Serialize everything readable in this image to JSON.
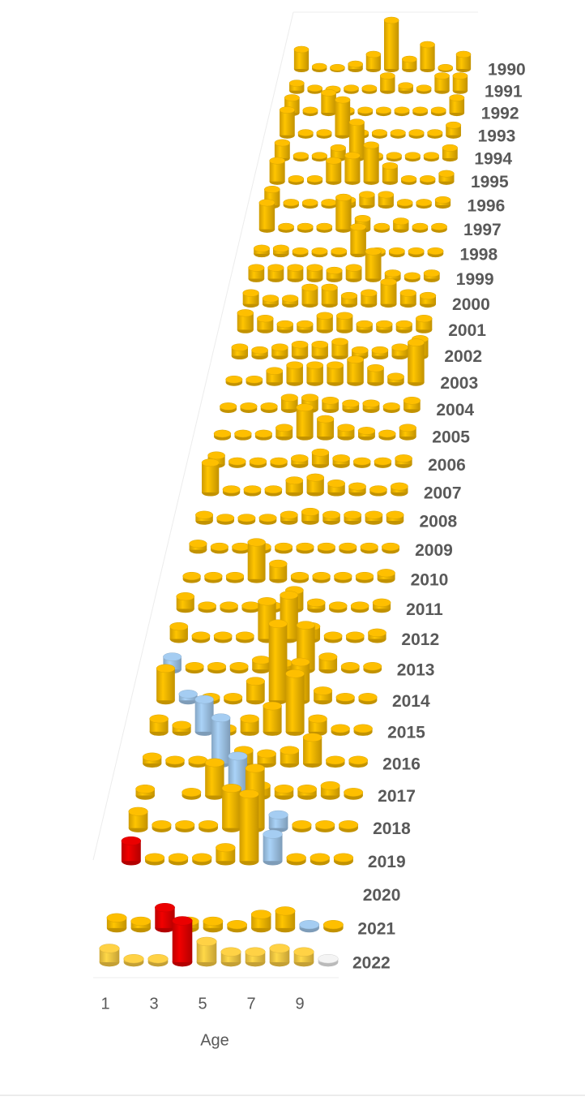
{
  "chart_data": {
    "type": "cylinder3d",
    "x_label": "Age",
    "categories": [
      1,
      null,
      3,
      null,
      5,
      null,
      7,
      null,
      9,
      null
    ],
    "series": [
      {
        "name": "1990",
        "color": "#f2b600",
        "values": [
          4,
          0.5,
          0.3,
          1,
          3,
          10,
          2,
          5,
          0.3,
          3
        ]
      },
      {
        "name": "1991",
        "color": "#f2b600",
        "values": [
          1.5,
          0.5,
          0.3,
          0.5,
          0.5,
          3,
          1,
          0.5,
          3,
          3
        ]
      },
      {
        "name": "1992",
        "color": "#f2b600",
        "values": [
          3,
          0.5,
          4,
          0.5,
          0.5,
          0.5,
          0.5,
          0.5,
          0.5,
          3
        ]
      },
      {
        "name": "1993",
        "color": "#f2b600",
        "values": [
          5,
          0.5,
          0.5,
          7,
          0.5,
          0.5,
          0.5,
          0.5,
          0.5,
          2
        ]
      },
      {
        "name": "1994",
        "color": "#f2b600",
        "values": [
          3,
          0.5,
          0.5,
          2,
          7,
          0.5,
          0.5,
          0.5,
          0.5,
          2
        ]
      },
      {
        "name": "1995",
        "color": "#f2b600",
        "values": [
          4,
          0.5,
          0.5,
          4,
          5,
          7,
          3,
          0.5,
          0.5,
          1.5
        ]
      },
      {
        "name": "1996",
        "color": "#f2b600",
        "values": [
          3,
          0.5,
          0.5,
          0.5,
          1,
          2,
          2,
          0.5,
          0.5,
          1
        ]
      },
      {
        "name": "1997",
        "color": "#f2b600",
        "values": [
          5,
          0.5,
          0.5,
          0.5,
          6,
          2,
          0.5,
          1.5,
          0.5,
          0.5
        ]
      },
      {
        "name": "1998",
        "color": "#f2b600",
        "values": [
          1,
          1,
          0.5,
          0.5,
          0.5,
          5,
          0.5,
          0.5,
          0.5,
          0.5
        ]
      },
      {
        "name": "1999",
        "color": "#f2b600",
        "values": [
          2,
          2,
          2,
          2,
          1.5,
          2,
          5,
          1,
          0.5,
          1
        ]
      },
      {
        "name": "2000",
        "color": "#f2b600",
        "values": [
          2,
          1,
          1,
          3,
          3,
          1.5,
          2,
          4,
          2,
          1.5
        ]
      },
      {
        "name": "2001",
        "color": "#f2b600",
        "values": [
          3,
          2,
          1,
          1,
          2.5,
          2.5,
          1,
          1,
          1,
          2
        ]
      },
      {
        "name": "2002",
        "color": "#f2b600",
        "values": [
          1.5,
          1,
          1.5,
          2,
          2,
          2.5,
          1,
          1,
          1.5,
          3
        ]
      },
      {
        "name": "2003",
        "color": "#f2b600",
        "values": [
          0.5,
          0.5,
          2,
          3,
          3,
          3,
          4,
          2.5,
          1,
          7
        ]
      },
      {
        "name": "2004",
        "color": "#f2b600",
        "values": [
          0.5,
          0.5,
          0.5,
          2,
          2,
          1.5,
          1,
          1,
          0.5,
          1.5
        ]
      },
      {
        "name": "2005",
        "color": "#f2b600",
        "values": [
          0.5,
          0.5,
          0.5,
          1.5,
          5,
          3,
          1.5,
          1,
          0.5,
          1.5
        ]
      },
      {
        "name": "2006",
        "color": "#f2b600",
        "values": [
          1.5,
          0.5,
          0.5,
          0.5,
          1,
          2,
          1,
          0.5,
          0.5,
          1
        ]
      },
      {
        "name": "2007",
        "color": "#f2b600",
        "values": [
          5,
          0.5,
          0.5,
          0.5,
          2,
          2.5,
          1.5,
          1,
          0.5,
          1
        ]
      },
      {
        "name": "2008",
        "color": "#f2b600",
        "values": [
          1,
          0.5,
          0.5,
          0.5,
          1,
          1.5,
          1,
          1,
          1,
          1
        ]
      },
      {
        "name": "2009",
        "color": "#f2b600",
        "values": [
          1,
          0.5,
          0.5,
          0.5,
          0.5,
          0.5,
          0.5,
          0.5,
          0.5,
          0.5
        ]
      },
      {
        "name": "2010",
        "color": "#f2b600",
        "values": [
          0.5,
          0.5,
          0.5,
          6,
          2.5,
          0.5,
          0.5,
          0.5,
          0.5,
          1
        ]
      },
      {
        "name": "2011",
        "color": "#f2b600",
        "values": [
          2,
          0.5,
          0.5,
          0.5,
          0.5,
          3,
          1,
          0.5,
          0.5,
          1
        ]
      },
      {
        "name": "2012",
        "color": "#f2b600",
        "values": [
          2,
          0.5,
          0.5,
          0.5,
          6,
          7,
          2,
          0.5,
          0.5,
          1
        ]
      },
      {
        "name": "2013",
        "color": "#f2b600",
        "values": [
          2,
          0.5,
          0.5,
          0.5,
          1.5,
          1,
          7,
          2,
          0.5,
          0.5
        ],
        "point_colors": [
          "#9dc3e6",
          "#f2b600",
          "#f2b600",
          "#f2b600",
          "#f2b600",
          "#f2b600",
          "#f2b600",
          "#f2b600",
          "#f2b600",
          "#f2b600"
        ]
      },
      {
        "name": "2014",
        "color": "#f2b600",
        "values": [
          5,
          1,
          0.5,
          0.5,
          3,
          12,
          6,
          1.5,
          0.5,
          0.5
        ],
        "point_colors": [
          "#f2b600",
          "#9dc3e6",
          "#f2b600",
          "#f2b600",
          "#f2b600",
          "#f2b600",
          "#f2b600",
          "#f2b600",
          "#f2b600",
          "#f2b600"
        ]
      },
      {
        "name": "2015",
        "color": "#f2b600",
        "values": [
          2,
          1,
          5,
          0.5,
          2,
          4,
          9,
          2,
          0.5,
          0.5
        ],
        "point_colors": [
          "#f2b600",
          "#f2b600",
          "#9dc3e6",
          "#f2b600",
          "#f2b600",
          "#f2b600",
          "#f2b600",
          "#f2b600",
          "#f2b600",
          "#f2b600"
        ]
      },
      {
        "name": "2016",
        "color": "#f2b600",
        "values": [
          1,
          0.5,
          0.5,
          7,
          2,
          1.5,
          2,
          4,
          0.5,
          0.5
        ],
        "point_colors": [
          "#f2b600",
          "#f2b600",
          "#f2b600",
          "#9dc3e6",
          "#f2b600",
          "#f2b600",
          "#f2b600",
          "#f2b600",
          "#f2b600",
          "#f2b600"
        ]
      },
      {
        "name": "2017",
        "color": "#f2b600",
        "values": [
          1,
          null,
          0.5,
          5,
          6,
          1.5,
          1,
          1,
          1.5,
          0.5
        ],
        "point_colors": [
          "#f2b600",
          "#f2b600",
          "#f2b600",
          "#f2b600",
          "#9dc3e6",
          "#f2b600",
          "#f2b600",
          "#f2b600",
          "#f2b600",
          "#f2b600"
        ]
      },
      {
        "name": "2018",
        "color": "#f2b600",
        "values": [
          2.5,
          0.5,
          0.5,
          0.5,
          6,
          9,
          2,
          0.5,
          0.5,
          0.5
        ],
        "point_colors": [
          "#f2b600",
          "#f2b600",
          "#f2b600",
          "#f2b600",
          "#f2b600",
          "#f2b600",
          "#9dc3e6",
          "#f2b600",
          "#f2b600",
          "#f2b600"
        ]
      },
      {
        "name": "2019",
        "color": "#f2b600",
        "values": [
          3,
          0.5,
          0.5,
          0.5,
          2,
          10,
          4,
          0.5,
          0.5,
          0.5
        ],
        "point_colors": [
          "#e00000",
          "#f2b600",
          "#f2b600",
          "#f2b600",
          "#f2b600",
          "#f2b600",
          "#9dc3e6",
          "#f2b600",
          "#f2b600",
          "#f2b600"
        ]
      },
      {
        "name": "2020",
        "color": "#f2b600",
        "values": [
          null,
          null,
          null,
          null,
          null,
          null,
          null,
          null,
          null,
          null
        ]
      },
      {
        "name": "2021",
        "color": "#f2b600",
        "values": [
          1.5,
          1,
          3,
          1,
          1,
          0.5,
          2,
          2.5,
          0.5,
          0.5
        ],
        "point_colors": [
          "#f2b600",
          "#f2b600",
          "#e00000",
          "#f2b600",
          "#f2b600",
          "#f2b600",
          "#f2b600",
          "#f2b600",
          "#9dc3e6",
          "#f2b600"
        ]
      },
      {
        "name": "2022",
        "color": "#f5c842",
        "values": [
          2,
          0.5,
          0.5,
          6,
          3,
          1.5,
          1.5,
          2,
          1.5,
          0.5
        ],
        "point_colors": [
          "#f5c842",
          "#f5c842",
          "#f5c842",
          "#e00000",
          "#f5c842",
          "#f5c842",
          "#f5c842",
          "#f5c842",
          "#f5c842",
          "#e8e8e8"
        ]
      }
    ]
  }
}
